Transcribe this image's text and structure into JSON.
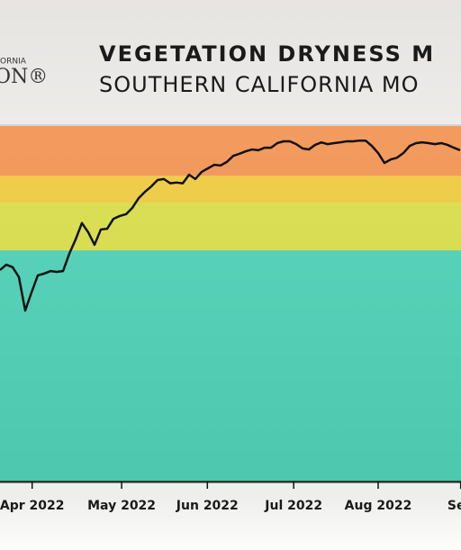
{
  "chart_data": {
    "type": "line",
    "title": "VEGETATION DRYNESS M",
    "subtitle": "SOUTHERN CALIFORNIA MO",
    "logo": {
      "top": "ORNIA",
      "bottom": "ON®"
    },
    "bands": [
      {
        "from": 86,
        "to": 100,
        "color": "#f98d45"
      },
      {
        "from": 78.5,
        "to": 86,
        "color": "#f5cd2e"
      },
      {
        "from": 65,
        "to": 78.5,
        "color": "#dde33c"
      },
      {
        "from": 0,
        "to": 65,
        "color": "#40d4b8"
      }
    ],
    "color": "#111111",
    "xlim": [
      0,
      73
    ],
    "ylim": [
      0,
      100
    ],
    "xticks": [
      {
        "value": 5.1,
        "label": "Apr 2022"
      },
      {
        "value": 19.3,
        "label": "May 2022"
      },
      {
        "value": 32.9,
        "label": "Jun 2022"
      },
      {
        "value": 46.6,
        "label": "Jul 2022"
      },
      {
        "value": 60,
        "label": "Aug 2022"
      },
      {
        "value": 73.1,
        "label": "Sep"
      }
    ],
    "values": [
      59.5,
      61.0,
      60.3,
      57.5,
      48.1,
      53.2,
      58.0,
      58.5,
      59.2,
      59.0,
      59.2,
      64.1,
      68.1,
      72.7,
      70.1,
      66.6,
      70.9,
      71.1,
      73.9,
      74.7,
      75.2,
      77.0,
      79.7,
      81.5,
      83.0,
      84.8,
      85.1,
      83.9,
      84.1,
      83.9,
      86.3,
      85.1,
      87.1,
      88.1,
      89.1,
      88.9,
      89.9,
      91.6,
      92.2,
      92.9,
      93.4,
      93.2,
      93.9,
      93.9,
      95.2,
      95.7,
      95.7,
      94.9,
      93.7,
      93.4,
      94.7,
      95.4,
      94.9,
      95.2,
      95.4,
      95.7,
      95.7,
      95.9,
      95.9,
      94.4,
      92.4,
      89.6,
      90.6,
      91.1,
      92.4,
      94.4,
      95.2,
      95.4,
      95.2,
      94.9,
      95.2,
      94.7,
      93.9,
      93.2
    ]
  }
}
